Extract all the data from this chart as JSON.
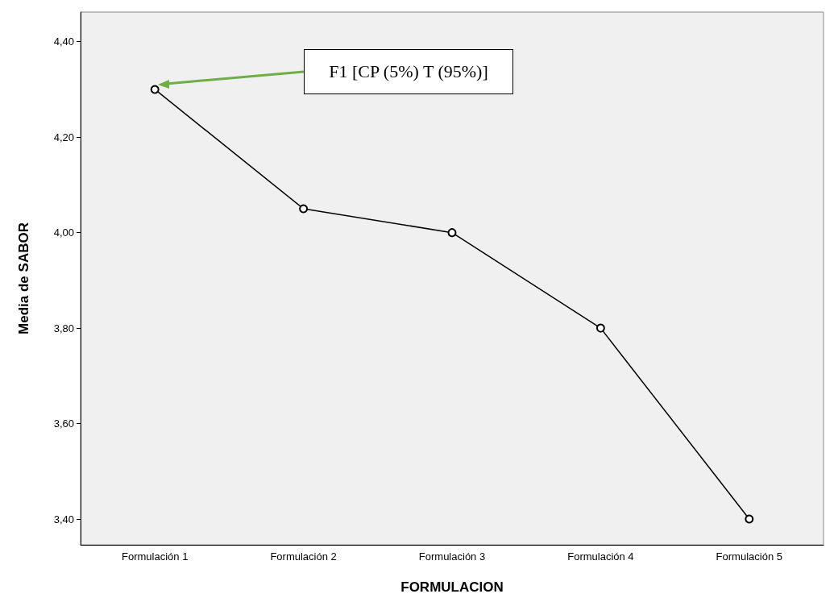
{
  "chart_data": {
    "type": "line",
    "xlabel": "FORMULACION",
    "ylabel": "Media de SABOR",
    "categories": [
      "Formulación 1",
      "Formulación 2",
      "Formulación 3",
      "Formulación 4",
      "Formulación 5"
    ],
    "values": [
      4.3,
      4.05,
      4.0,
      3.8,
      3.4
    ],
    "color": "#000000",
    "marker": "circle",
    "grid": false,
    "ylim": [
      3.346,
      4.462
    ],
    "yticks": [
      {
        "value": 3.4,
        "label": "3,40"
      },
      {
        "value": 3.6,
        "label": "3,60"
      },
      {
        "value": 3.8,
        "label": "3,80"
      },
      {
        "value": 4.0,
        "label": "4,00"
      },
      {
        "value": 4.2,
        "label": "4,20"
      },
      {
        "value": 4.4,
        "label": "4,40"
      }
    ],
    "annotations": [
      "F1 [CP (5%) T (95%)]"
    ]
  }
}
